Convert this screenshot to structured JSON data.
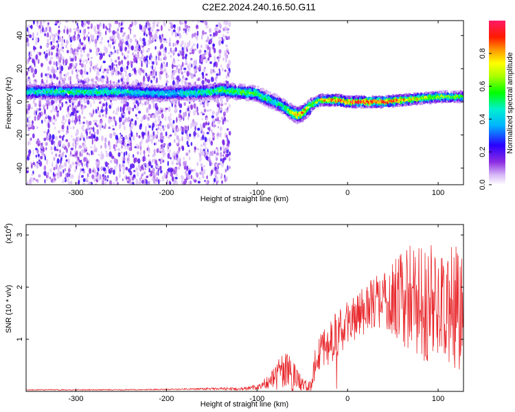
{
  "figure_title": "C2E2.2024.240.16.50.G11",
  "chart_data": [
    {
      "type": "heatmap",
      "title": "C2E2.2024.240.16.50.G11",
      "xlabel": "Height of straight line (km)",
      "ylabel": "Frequency (Hz)",
      "xlim": [
        -355,
        128
      ],
      "ylim": [
        -50,
        49
      ],
      "x_ticks": [
        -300,
        -200,
        -100,
        0,
        100
      ],
      "y_ticks": [
        -40,
        -20,
        0,
        20,
        40
      ],
      "x_tick_labels": [
        "-300",
        "-200",
        "-100",
        "0",
        "100"
      ],
      "y_tick_labels": [
        "-40",
        "-20",
        "0",
        "20",
        "40"
      ],
      "colorbar": {
        "label": "Normalized spectral amplitude",
        "range": [
          0,
          1
        ],
        "ticks": [
          0.0,
          0.2,
          0.4,
          0.6,
          0.8
        ],
        "tick_labels": [
          "0.0",
          "0.2",
          "0.4",
          "0.6",
          "0.8"
        ]
      },
      "ridge": {
        "x": [
          -355,
          -300,
          -250,
          -200,
          -150,
          -140,
          -120,
          -100,
          -90,
          -80,
          -70,
          -60,
          -55,
          -50,
          -45,
          -40,
          -30,
          -20,
          -10,
          0,
          20,
          40,
          60,
          80,
          100,
          128
        ],
        "freq": [
          6,
          6,
          6,
          5,
          6,
          7,
          6,
          5,
          2,
          0,
          -3,
          -7,
          -8,
          -7,
          -5,
          -2,
          1,
          1,
          1,
          0,
          0,
          0,
          1,
          2,
          3,
          3
        ],
        "peak_amplitude": [
          0.5,
          0.55,
          0.5,
          0.45,
          0.55,
          0.6,
          0.6,
          0.6,
          0.55,
          0.5,
          0.55,
          0.8,
          0.9,
          0.9,
          0.85,
          0.7,
          0.8,
          0.9,
          0.95,
          0.95,
          1.0,
          1.0,
          0.9,
          0.75,
          0.7,
          0.6
        ]
      },
      "noise_region_x": [
        -355,
        -130
      ],
      "noise_freq_range": [
        -50,
        49
      ]
    },
    {
      "type": "line",
      "xlabel": "Height of straight line (km)",
      "ylabel": "SNR (10 * v/v)",
      "y_multiplier_label": "(x10",
      "y_multiplier_exponent": "4",
      "y_multiplier_close": ")",
      "xlim": [
        -355,
        128
      ],
      "ylim": [
        0,
        3.2
      ],
      "x_ticks": [
        -300,
        -200,
        -100,
        0,
        100
      ],
      "y_ticks": [
        1,
        2,
        3
      ],
      "x_tick_labels": [
        "-300",
        "-200",
        "-100",
        "0",
        "100"
      ],
      "y_tick_labels": [
        "1",
        "2",
        "3"
      ],
      "series": [
        {
          "color": "#e8282c",
          "envelope_x": [
            -355,
            -250,
            -200,
            -150,
            -120,
            -100,
            -85,
            -75,
            -65,
            -55,
            -45,
            -40,
            -35,
            -30,
            -20,
            -10,
            0,
            10,
            20,
            30,
            40,
            50,
            60,
            70,
            80,
            90,
            100,
            110,
            120,
            128
          ],
          "envelope_mean": [
            0.03,
            0.03,
            0.04,
            0.05,
            0.05,
            0.08,
            0.2,
            0.35,
            0.35,
            0.2,
            0.1,
            0.1,
            0.6,
            0.85,
            0.95,
            1.1,
            1.3,
            1.45,
            1.6,
            1.7,
            1.75,
            1.8,
            1.8,
            1.8,
            1.75,
            1.7,
            1.65,
            1.6,
            1.6,
            1.6
          ],
          "envelope_spread": [
            0.01,
            0.01,
            0.01,
            0.02,
            0.03,
            0.05,
            0.15,
            0.35,
            0.4,
            0.2,
            0.1,
            0.1,
            0.4,
            0.45,
            0.45,
            0.45,
            0.45,
            0.45,
            0.5,
            0.5,
            0.6,
            0.7,
            0.9,
            1.1,
            1.2,
            1.2,
            1.2,
            1.2,
            1.2,
            1.2
          ]
        }
      ]
    }
  ]
}
